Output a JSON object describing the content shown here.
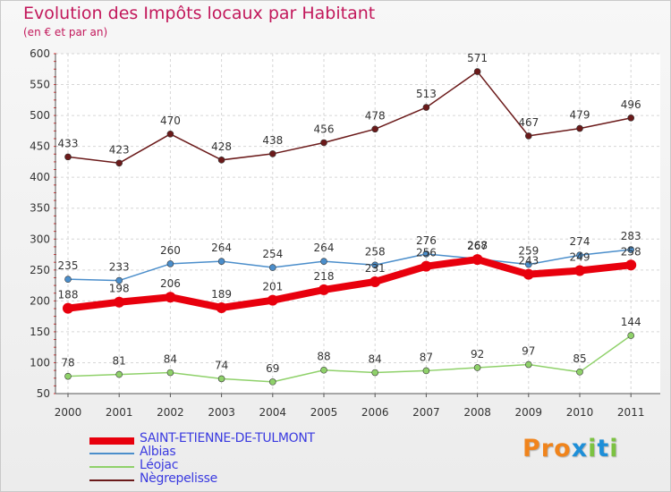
{
  "header": {
    "title": "Evolution des Impôts locaux par Habitant",
    "subtitle": "(en € et par an)"
  },
  "logo": {
    "letters": [
      "P",
      "r",
      "o",
      "x",
      "i",
      "t",
      "i"
    ],
    "colors": [
      "#f0841c",
      "#f0841c",
      "#f0841c",
      "#1e8fd8",
      "#7cc242",
      "#1e8fd8",
      "#7cc242"
    ]
  },
  "chart_data": {
    "type": "line",
    "title": "Evolution des Impôts locaux par Habitant",
    "subtitle": "(en € et par an)",
    "x": [
      "2000",
      "2001",
      "2002",
      "2003",
      "2004",
      "2005",
      "2006",
      "2007",
      "2008",
      "2009",
      "2010",
      "2011"
    ],
    "yticks": [
      "50",
      "100",
      "150",
      "200",
      "250",
      "300",
      "350",
      "400",
      "450",
      "500",
      "550",
      "600"
    ],
    "ylim": [
      50,
      600
    ],
    "grid": true,
    "legend": "bottom-left",
    "series": [
      {
        "name": "Nègrepelisse",
        "color": "#6b1a1a",
        "values": [
          433,
          423,
          470,
          428,
          438,
          456,
          478,
          513,
          571,
          467,
          479,
          496
        ]
      },
      {
        "name": "Albias",
        "color": "#4b8ecb",
        "values": [
          235,
          233,
          260,
          264,
          254,
          264,
          258,
          276,
          268,
          259,
          274,
          283
        ]
      },
      {
        "name": "Léojac",
        "color": "#8fd16a",
        "values": [
          78,
          81,
          84,
          74,
          69,
          88,
          84,
          87,
          92,
          97,
          85,
          144
        ]
      },
      {
        "name": "SAINT-ETIENNE-DE-TULMONT",
        "color": "#e8000d",
        "values": [
          188,
          198,
          206,
          189,
          201,
          218,
          231,
          256,
          267,
          243,
          249,
          258
        ]
      }
    ]
  },
  "legend": {
    "items": [
      {
        "label": "SAINT-ETIENNE-DE-TULMONT",
        "color": "#e8000d"
      },
      {
        "label": "Albias",
        "color": "#4b8ecb"
      },
      {
        "label": "Léojac",
        "color": "#8fd16a"
      },
      {
        "label": "Nègrepelisse",
        "color": "#6b1a1a"
      }
    ]
  }
}
